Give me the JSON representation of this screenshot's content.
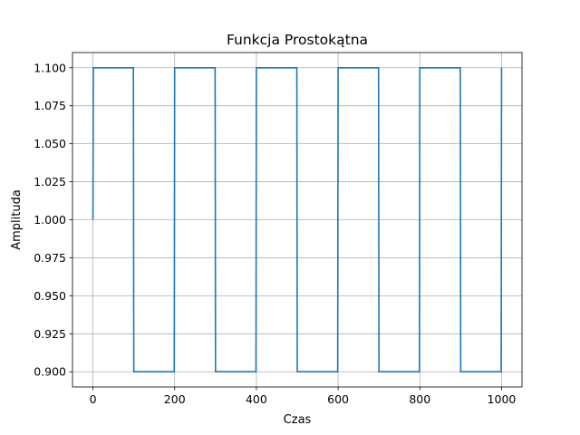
{
  "chart_data": {
    "type": "line",
    "title": "Funkcja Prostokątna",
    "xlabel": "Czas",
    "ylabel": "Amplituda",
    "xlim": [
      -50,
      1050
    ],
    "ylim": [
      0.89,
      1.11
    ],
    "x_ticks": [
      0,
      200,
      400,
      600,
      800,
      1000
    ],
    "x_tick_labels": [
      "0",
      "200",
      "400",
      "600",
      "800",
      "1000"
    ],
    "y_ticks": [
      0.9,
      0.925,
      0.95,
      0.975,
      1.0,
      1.025,
      1.05,
      1.075,
      1.1
    ],
    "y_tick_labels": [
      "0.900",
      "0.925",
      "0.950",
      "0.975",
      "1.000",
      "1.025",
      "1.050",
      "1.075",
      "1.100"
    ],
    "grid": true,
    "series": [
      {
        "color": "#1f77b4",
        "x": [
          0,
          1,
          99,
          100,
          199,
          200,
          299,
          300,
          399,
          400,
          499,
          500,
          599,
          600,
          699,
          700,
          799,
          800,
          899,
          900,
          999,
          1000
        ],
        "y": [
          1.0,
          1.1,
          1.1,
          0.9,
          0.9,
          1.1,
          1.1,
          0.9,
          0.9,
          1.1,
          1.1,
          0.9,
          0.9,
          1.1,
          1.1,
          0.9,
          0.9,
          1.1,
          1.1,
          0.9,
          0.9,
          1.1
        ]
      }
    ]
  }
}
